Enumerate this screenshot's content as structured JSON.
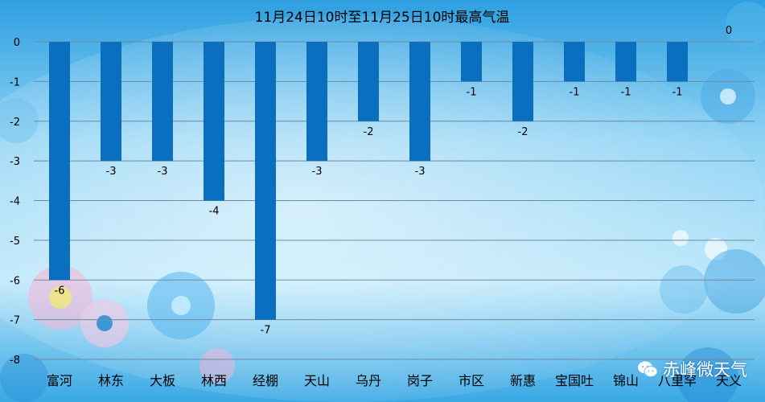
{
  "chart_data": {
    "type": "bar",
    "title": "11月24日10时至11月25日10时最高气温",
    "categories": [
      "富河",
      "林东",
      "大板",
      "林西",
      "经棚",
      "天山",
      "乌丹",
      "岗子",
      "市区",
      "新惠",
      "宝国吐",
      "锦山",
      "八里罕",
      "天义"
    ],
    "values": [
      -6,
      -3,
      -3,
      -4,
      -7,
      -3,
      -2,
      -3,
      -1,
      -2,
      -1,
      -1,
      -1,
      0
    ],
    "ylim": [
      -8,
      0
    ],
    "yticks": [
      0,
      -1,
      -2,
      -3,
      -4,
      -5,
      -6,
      -7,
      -8
    ],
    "grid": true,
    "legend": "none",
    "bar_color": "#0b6fc0",
    "data_labels": true
  },
  "watermark": {
    "text": "赤峰微天气",
    "icon": "wechat-icon"
  },
  "colors": {
    "background_top": "#1b8fd6",
    "background_mid": "#6cc6f0",
    "background_bottom": "#2aa2e0",
    "gridline": "#6f8aa0",
    "text": "#000000"
  }
}
